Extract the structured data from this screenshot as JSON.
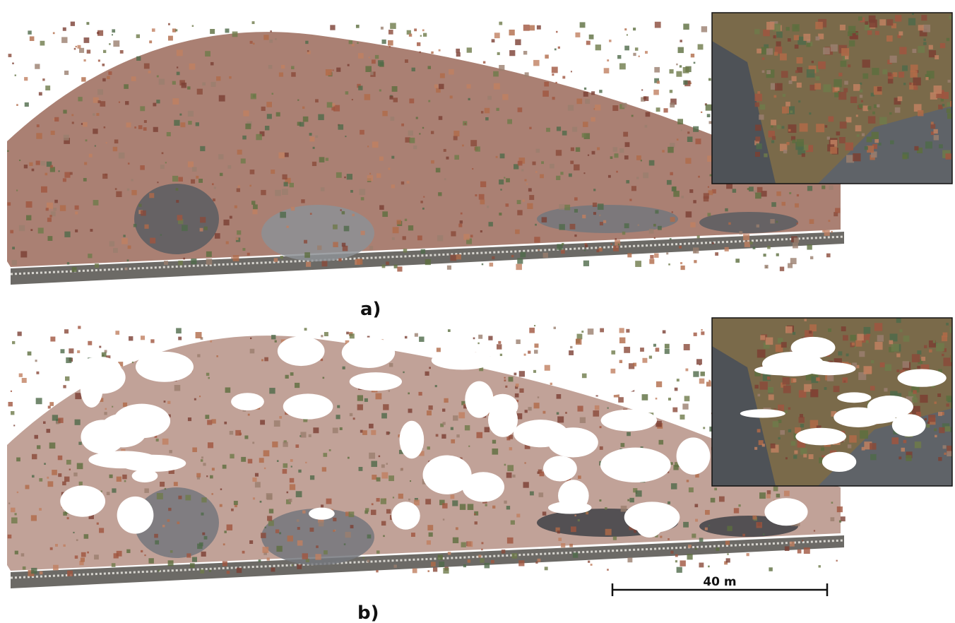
{
  "panels": [
    {
      "label": "a)"
    },
    {
      "label": "b)"
    }
  ],
  "scale_bar": {
    "label": "40 m"
  }
}
